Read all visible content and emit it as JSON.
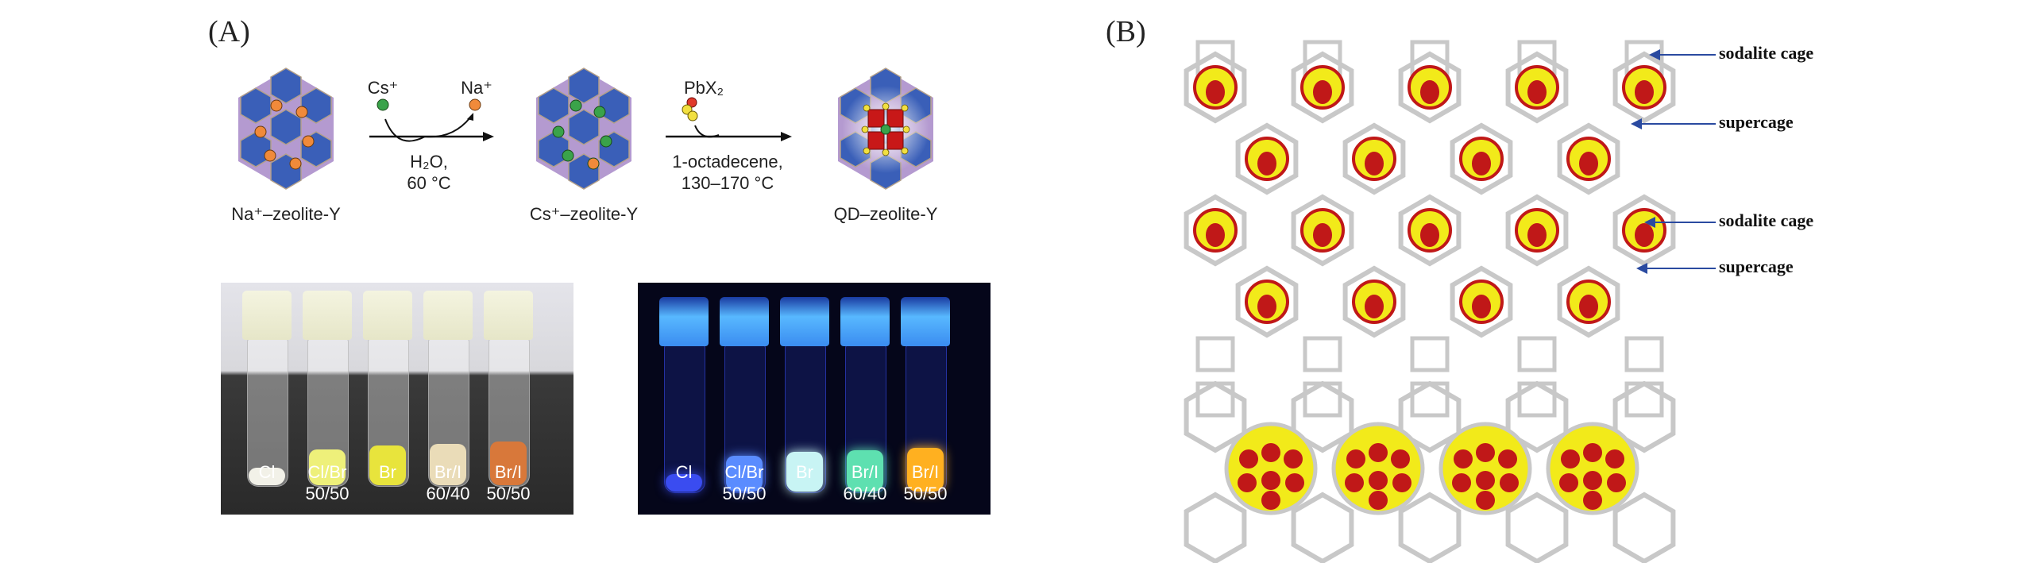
{
  "panel_a": {
    "label": "(A)",
    "scheme": {
      "stage1": "Na⁺–zeolite-Y",
      "stage2": "Cs⁺–zeolite-Y",
      "stage3": "QD–zeolite-Y",
      "step1_in": "Cs⁺",
      "step1_out": "Na⁺",
      "step1_cond1": "H₂O,",
      "step1_cond2": "60 °C",
      "step2_reagent": "PbX₂",
      "step2_cond1": "1-octadecene,",
      "step2_cond2": "130–170 °C"
    },
    "photos": {
      "ambient": [
        {
          "line1": "Cl",
          "line2": "",
          "powder": "#f2f1e8"
        },
        {
          "line1": "Cl/Br",
          "line2": "50/50",
          "powder": "#eef07a"
        },
        {
          "line1": "Br",
          "line2": "",
          "powder": "#e8e43c"
        },
        {
          "line1": "Br/I",
          "line2": "60/40",
          "powder": "#eadcb8"
        },
        {
          "line1": "Br/I",
          "line2": "50/50",
          "powder": "#d8783a"
        }
      ],
      "uv": [
        {
          "line1": "Cl",
          "line2": "",
          "powder": "#3a4cf0"
        },
        {
          "line1": "Cl/Br",
          "line2": "50/50",
          "powder": "#5a8cff"
        },
        {
          "line1": "Br",
          "line2": "",
          "powder": "#c8f4f4"
        },
        {
          "line1": "Br/I",
          "line2": "60/40",
          "powder": "#5ee0b0"
        },
        {
          "line1": "Br/I",
          "line2": "50/50",
          "powder": "#ffb020"
        }
      ]
    }
  },
  "panel_b": {
    "label": "(B)",
    "top": {
      "label1": "sodalite cage",
      "label2": "supercage"
    },
    "bottom": {
      "label1": "sodalite cage",
      "label2": "supercage"
    }
  },
  "colors": {
    "zeolite_blue": "#3a5fb8",
    "cs_green": "#3aa34a",
    "na_orange": "#f08a3a",
    "framework_gray": "#c8c8c8",
    "atom_yellow": "#f2ea1a",
    "atom_red": "#c01818",
    "arrow_blue": "#2a4aa0"
  }
}
